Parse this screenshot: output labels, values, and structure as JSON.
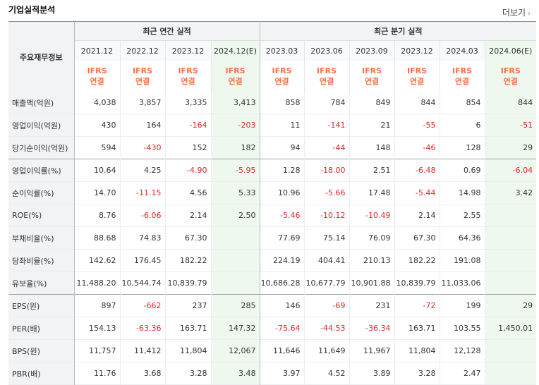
{
  "section_title": "기업실적분석",
  "more_label": "더보기",
  "header": {
    "row_label": "주요재무정보",
    "annual_group": "최근 연간 실적",
    "quarter_group": "최근 분기 실적",
    "periods": [
      "2021.12",
      "2022.12",
      "2023.12",
      "2024.12(E)",
      "2023.03",
      "2023.06",
      "2023.09",
      "2023.12",
      "2024.03",
      "2024.06(E)"
    ],
    "standard_line1": "IFRS",
    "standard_line2": "연결"
  },
  "rows": [
    {
      "label": "매출액(억원)",
      "values": [
        "4,038",
        "3,857",
        "3,335",
        "3,413",
        "858",
        "784",
        "849",
        "844",
        "854",
        "844"
      ]
    },
    {
      "label": "영업이익(억원)",
      "values": [
        "430",
        "164",
        "-164",
        "-203",
        "11",
        "-141",
        "21",
        "-55",
        "6",
        "-51"
      ]
    },
    {
      "label": "당기순이익(억원)",
      "values": [
        "594",
        "-430",
        "152",
        "182",
        "94",
        "-44",
        "148",
        "-46",
        "128",
        "29"
      ]
    },
    {
      "label": "영업이익률(%)",
      "values": [
        "10.64",
        "4.25",
        "-4.90",
        "-5.95",
        "1.28",
        "-18.00",
        "2.51",
        "-6.48",
        "0.69",
        "-6.04"
      ]
    },
    {
      "label": "순이익률(%)",
      "values": [
        "14.70",
        "-11.15",
        "4.56",
        "5.33",
        "10.96",
        "-5.66",
        "17.48",
        "-5.44",
        "14.98",
        "3.42"
      ]
    },
    {
      "label": "ROE(%)",
      "values": [
        "8.76",
        "-6.06",
        "2.14",
        "2.50",
        "-5.46",
        "-10.12",
        "-10.49",
        "2.14",
        "2.55",
        ""
      ]
    },
    {
      "label": "부채비율(%)",
      "values": [
        "88.68",
        "74.83",
        "67.30",
        "",
        "77.69",
        "75.14",
        "76.09",
        "67.30",
        "64.36",
        ""
      ]
    },
    {
      "label": "당좌비율(%)",
      "values": [
        "142.62",
        "176.45",
        "182.22",
        "",
        "224.19",
        "404.41",
        "210.13",
        "182.22",
        "191.08",
        ""
      ]
    },
    {
      "label": "유보율(%)",
      "values": [
        "11,488.20",
        "10,544.74",
        "10,839.79",
        "",
        "10,686.28",
        "10,677.79",
        "10,901.88",
        "10,839.79",
        "11,033.06",
        ""
      ]
    },
    {
      "label": "EPS(원)",
      "values": [
        "897",
        "-662",
        "237",
        "285",
        "146",
        "-69",
        "231",
        "-72",
        "199",
        "29"
      ]
    },
    {
      "label": "PER(배)",
      "values": [
        "154.13",
        "-63.36",
        "163.71",
        "147.32",
        "-75.64",
        "-44.53",
        "-36.34",
        "163.71",
        "103.55",
        "1,450.01"
      ]
    },
    {
      "label": "BPS(원)",
      "values": [
        "11,757",
        "11,412",
        "11,804",
        "12,067",
        "11,646",
        "11,649",
        "11,967",
        "11,804",
        "12,128",
        ""
      ]
    },
    {
      "label": "PBR(배)",
      "values": [
        "11.76",
        "3.68",
        "3.28",
        "3.48",
        "3.97",
        "4.52",
        "3.89",
        "3.28",
        "2.47",
        ""
      ]
    }
  ],
  "colors": {
    "negative": "#e0242a",
    "standard": "#f4724b",
    "estimate_bg": "#eef8ee",
    "label_bg": "#f2f3f5"
  }
}
